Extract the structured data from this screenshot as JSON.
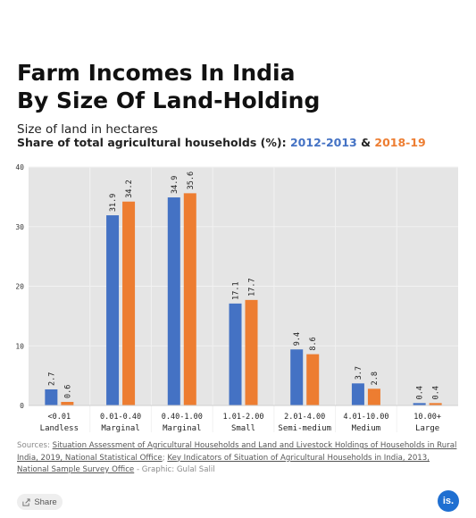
{
  "header": {
    "title_line1": "Farm Incomes In India",
    "title_line2": "By Size Of Land-Holding",
    "subtitle": "Size of land in hectares",
    "share_prefix": "Share of total agricultural households (%): ",
    "series1_label": "2012-2013",
    "amp": " & ",
    "series2_label": "2018-19"
  },
  "chart_data": {
    "type": "bar",
    "categories": [
      {
        "range": "<0.01",
        "label": "Landless"
      },
      {
        "range": "0.01-0.40",
        "label": "Marginal"
      },
      {
        "range": "0.40-1.00",
        "label": "Marginal"
      },
      {
        "range": "1.01-2.00",
        "label": "Small"
      },
      {
        "range": "2.01-4.00",
        "label": "Semi-medium"
      },
      {
        "range": "4.01-10.00",
        "label": "Medium"
      },
      {
        "range": "10.00+",
        "label": "Large"
      }
    ],
    "series": [
      {
        "name": "2012-2013",
        "color": "#4472c4",
        "values": [
          2.7,
          31.9,
          34.9,
          17.1,
          9.4,
          3.7,
          0.4
        ]
      },
      {
        "name": "2018-19",
        "color": "#ed7d31",
        "values": [
          0.6,
          34.2,
          35.6,
          17.7,
          8.6,
          2.8,
          0.4
        ]
      }
    ],
    "ylim": [
      0,
      40
    ],
    "yticks": [
      0,
      10,
      20,
      30,
      40
    ],
    "grid": true,
    "plot_background": "#e5e5e5",
    "legend": "in-subtitle"
  },
  "footer": {
    "sources_prefix": "Sources: ",
    "source1": "Situation Assessment of Agricultural Households and Land and Livestock Holdings of Households in Rural India, 2019, National Statistical Office",
    "separator": "; ",
    "source2": "Key Indicators of Situation of Agricultural Households in India, 2013, National Sample Survey Office",
    "graphic_credit": " - Graphic: Gulal Salil",
    "share_label": "Share",
    "logo_text": "is."
  }
}
